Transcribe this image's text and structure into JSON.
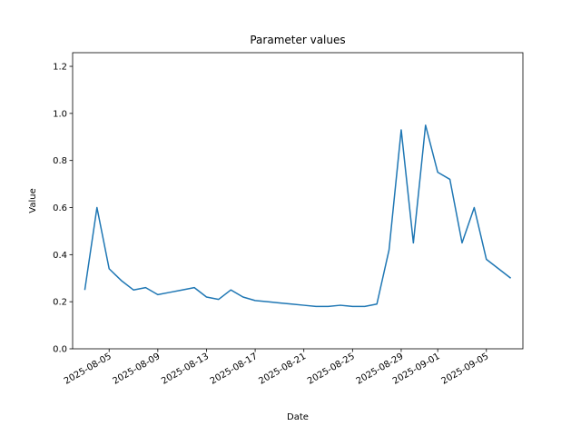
{
  "chart_data": {
    "type": "line",
    "title": "Parameter values",
    "x_label": "Date",
    "y_label": "Value",
    "x": [
      "2025-08-03",
      "2025-08-04",
      "2025-08-05",
      "2025-08-06",
      "2025-08-07",
      "2025-08-08",
      "2025-08-09",
      "2025-08-10",
      "2025-08-11",
      "2025-08-12",
      "2025-08-13",
      "2025-08-14",
      "2025-08-15",
      "2025-08-16",
      "2025-08-17",
      "2025-08-18",
      "2025-08-19",
      "2025-08-20",
      "2025-08-21",
      "2025-08-22",
      "2025-08-23",
      "2025-08-24",
      "2025-08-25",
      "2025-08-26",
      "2025-08-27",
      "2025-08-28",
      "2025-08-29",
      "2025-08-30",
      "2025-08-31",
      "2025-09-01",
      "2025-09-02",
      "2025-09-03",
      "2025-09-04",
      "2025-09-05",
      "2025-09-06",
      "2025-09-07"
    ],
    "series": [
      {
        "name": "Value",
        "color": "#1f77b4",
        "values": [
          0.25,
          0.6,
          0.34,
          0.29,
          0.25,
          0.26,
          0.23,
          0.24,
          0.25,
          0.26,
          0.22,
          0.21,
          0.25,
          0.22,
          0.205,
          0.2,
          0.195,
          0.19,
          0.185,
          0.18,
          0.18,
          0.185,
          0.18,
          0.18,
          0.19,
          0.42,
          0.93,
          0.45,
          0.95,
          0.75,
          0.72,
          0.45,
          0.6,
          0.38,
          0.34,
          0.3
        ]
      }
    ],
    "xlim": [
      "2025-08-02",
      "2025-09-08"
    ],
    "xticks": [
      "2025-08-05",
      "2025-08-09",
      "2025-08-13",
      "2025-08-17",
      "2025-08-21",
      "2025-08-25",
      "2025-08-29",
      "2025-09-01",
      "2025-09-05"
    ],
    "ylim": [
      0,
      1.258
    ],
    "yticks": [
      {
        "value": 0,
        "label": "0.0"
      },
      0.2,
      0.4,
      0.6,
      0.8,
      {
        "value": 1,
        "label": "1.0"
      },
      1.2
    ]
  }
}
